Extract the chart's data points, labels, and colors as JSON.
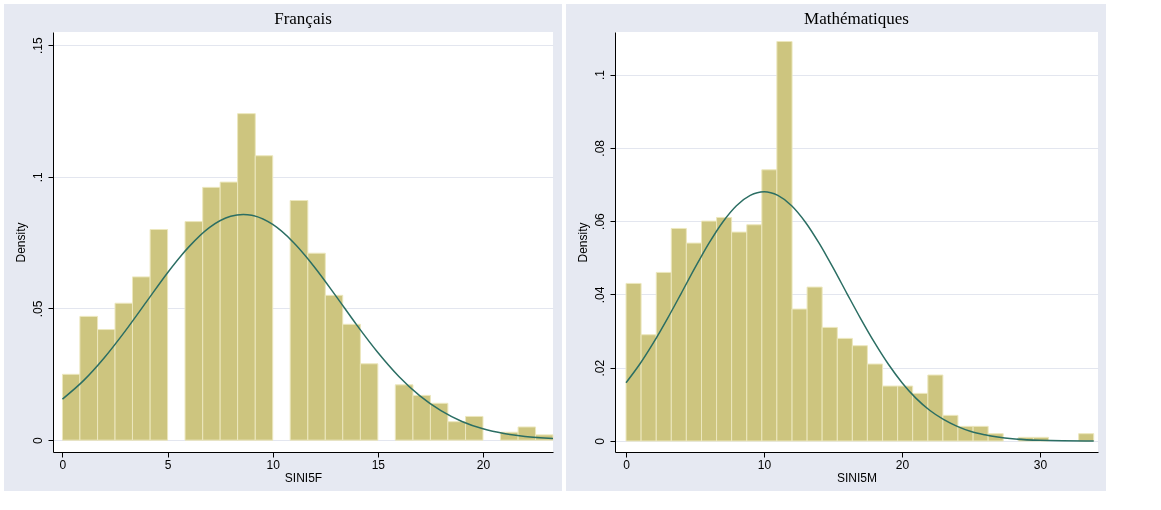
{
  "chart_data": [
    {
      "type": "histogram",
      "title": "Français",
      "xlabel": "SINI5F",
      "ylabel": "Density",
      "color": "#cdc57f",
      "bins": [
        0,
        0.83,
        1.67,
        2.5,
        3.33,
        4.17,
        5,
        5.83,
        6.67,
        7.5,
        8.33,
        9.17,
        10,
        10.83,
        11.67,
        12.5,
        13.33,
        14.17,
        15,
        15.83,
        16.67,
        17.5,
        18.33,
        19.17,
        20,
        20.83,
        21.67,
        22.5,
        23.33
      ],
      "values": [
        0.025,
        0.047,
        0.042,
        0.052,
        0.062,
        0.08,
        0,
        0.083,
        0.096,
        0.098,
        0.124,
        0.108,
        0,
        0.091,
        0.071,
        0.055,
        0.044,
        0.029,
        0,
        0.021,
        0.017,
        0.014,
        0.007,
        0.009,
        0,
        0.003,
        0.005,
        0.002
      ],
      "series": [
        {
          "type": "line",
          "color": "#2b6e63",
          "x": [
            0,
            1,
            2,
            3,
            4,
            5,
            6,
            7,
            8,
            8.6,
            9,
            10,
            11,
            12,
            13,
            14,
            15,
            16,
            17,
            18,
            19,
            20,
            21,
            22,
            23.33
          ],
          "values": [
            0.0156,
            0.0226,
            0.0314,
            0.0416,
            0.0526,
            0.0636,
            0.0733,
            0.0808,
            0.085,
            0.0857,
            0.0854,
            0.0819,
            0.075,
            0.0656,
            0.0548,
            0.0437,
            0.0333,
            0.0242,
            0.0168,
            0.0112,
            0.0071,
            0.0043,
            0.0025,
            0.0014,
            0.0006
          ]
        }
      ],
      "xlim": [
        -0.45,
        23.33
      ],
      "ylim": [
        -0.0045,
        0.155
      ],
      "xticks": [
        0,
        5,
        10,
        15,
        20
      ],
      "yticks": [
        0,
        {
          "value": 0.05,
          "label": ".05"
        },
        {
          "value": 0.1,
          "label": ".1"
        },
        {
          "value": 0.15,
          "label": ".15"
        }
      ],
      "grid": "y"
    },
    {
      "type": "histogram",
      "title": "Mathématiques",
      "xlabel": "SINI5M",
      "ylabel": "Density",
      "color": "#cdc57f",
      "bins": [
        0,
        1.09,
        2.19,
        3.28,
        4.37,
        5.47,
        6.56,
        7.65,
        8.75,
        9.84,
        10.93,
        12.03,
        13.12,
        14.21,
        15.31,
        16.4,
        17.49,
        18.59,
        19.68,
        20.77,
        21.87,
        22.96,
        24.05,
        25.15,
        26.24,
        27.33,
        28.43,
        29.52,
        30.61,
        31.71,
        32.8,
        33.89
      ],
      "values": [
        0.043,
        0.029,
        0.046,
        0.058,
        0.054,
        0.06,
        0.061,
        0.057,
        0.059,
        0.074,
        0.109,
        0.036,
        0.042,
        0.031,
        0.028,
        0.026,
        0.021,
        0.015,
        0.015,
        0.013,
        0.018,
        0.007,
        0.004,
        0.004,
        0.002,
        0,
        0.001,
        0.001,
        0,
        0,
        0.002
      ],
      "series": [
        {
          "type": "line",
          "color": "#2b6e63",
          "x": [
            0,
            1,
            2,
            3,
            4,
            5,
            6,
            7,
            8,
            9,
            10,
            11,
            12,
            13,
            14,
            15,
            16,
            17,
            18,
            19,
            20,
            21,
            22,
            23,
            24,
            25,
            26,
            28,
            30,
            33.89
          ],
          "values": [
            0.0159,
            0.021,
            0.0269,
            0.0334,
            0.0403,
            0.0473,
            0.0539,
            0.0597,
            0.0642,
            0.067,
            0.068,
            0.067,
            0.0642,
            0.0597,
            0.0539,
            0.0473,
            0.0403,
            0.0334,
            0.0269,
            0.021,
            0.0159,
            0.0117,
            0.0084,
            0.0059,
            0.004,
            0.0026,
            0.0017,
            0.0006,
            0.0002,
            0
          ]
        }
      ],
      "xlim": [
        -0.8,
        34.2
      ],
      "ylim": [
        -0.003,
        0.1116
      ],
      "xticks": [
        0,
        10,
        20,
        30
      ],
      "yticks": [
        0,
        {
          "value": 0.02,
          "label": ".02"
        },
        {
          "value": 0.04,
          "label": ".04"
        },
        {
          "value": 0.06,
          "label": ".06"
        },
        {
          "value": 0.08,
          "label": ".08"
        },
        {
          "value": 0.1,
          "label": ".1"
        }
      ],
      "grid": "y"
    }
  ]
}
